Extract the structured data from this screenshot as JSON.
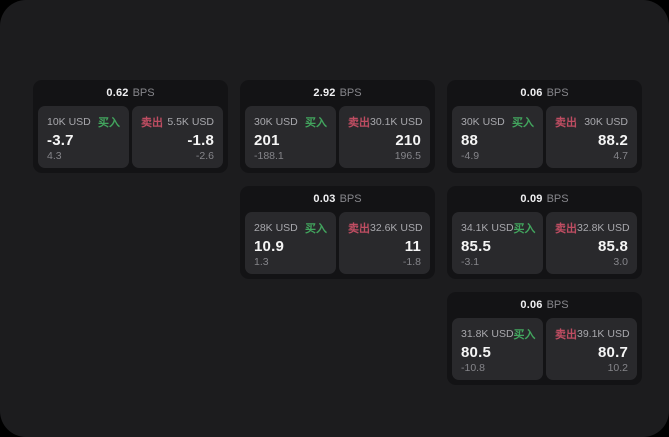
{
  "theme": {
    "outer_background": "#000000",
    "surface_background": "#1c1c1e",
    "card_background": "#131315",
    "panel_background": "#29292c",
    "buy_color": "#42a55e",
    "sell_color": "#bf4d62",
    "value_color": "#f5f5f5",
    "muted_text_color": "#85858a"
  },
  "labels": {
    "bps_suffix": "BPS",
    "buy": "买入",
    "sell": "卖出"
  },
  "cards": [
    {
      "bps": "0.62",
      "buy": {
        "amount": "10K USD",
        "value": "-3.7",
        "delta": "4.3"
      },
      "sell": {
        "amount": "5.5K USD",
        "value": "-1.8",
        "delta": "-2.6"
      }
    },
    {
      "bps": "2.92",
      "buy": {
        "amount": "30K USD",
        "value": "201",
        "delta": "-188.1"
      },
      "sell": {
        "amount": "30.1K USD",
        "value": "210",
        "delta": "196.5"
      }
    },
    {
      "bps": "0.06",
      "buy": {
        "amount": "30K USD",
        "value": "88",
        "delta": "-4.9"
      },
      "sell": {
        "amount": "30K USD",
        "value": "88.2",
        "delta": "4.7"
      }
    },
    {
      "bps": "0.03",
      "buy": {
        "amount": "28K USD",
        "value": "10.9",
        "delta": "1.3"
      },
      "sell": {
        "amount": "32.6K USD",
        "value": "11",
        "delta": "-1.8"
      }
    },
    {
      "bps": "0.09",
      "buy": {
        "amount": "34.1K USD",
        "value": "85.5",
        "delta": "-3.1"
      },
      "sell": {
        "amount": "32.8K USD",
        "value": "85.8",
        "delta": "3.0"
      }
    },
    {
      "bps": "0.06",
      "buy": {
        "amount": "31.8K USD",
        "value": "80.5",
        "delta": "-10.8"
      },
      "sell": {
        "amount": "39.1K USD",
        "value": "80.7",
        "delta": "10.2"
      }
    }
  ]
}
